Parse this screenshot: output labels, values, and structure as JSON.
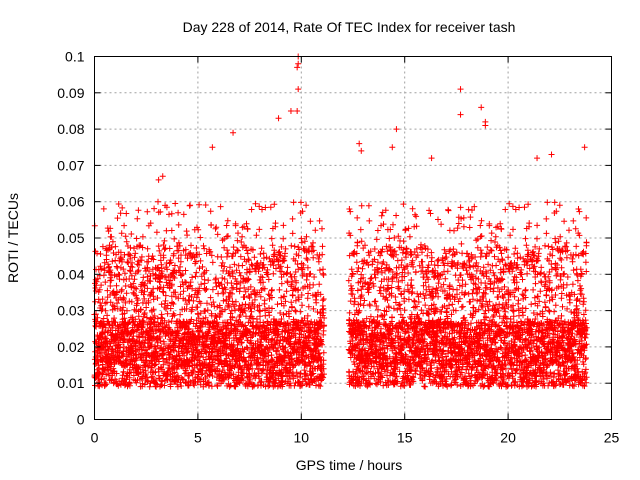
{
  "chart_data": {
    "type": "scatter",
    "title": "Day 228 of 2014, Rate Of TEC Index for receiver tash",
    "xlabel": "GPS time / hours",
    "ylabel": "ROTI / TECUs",
    "xlim": [
      0,
      25
    ],
    "ylim": [
      0,
      0.1
    ],
    "xticks": [
      0,
      5,
      10,
      15,
      20,
      25
    ],
    "xtick_labels": [
      "0",
      "5",
      "10",
      "15",
      "20",
      "25"
    ],
    "yticks": [
      0,
      0.01,
      0.02,
      0.03,
      0.04,
      0.05,
      0.06,
      0.07,
      0.08,
      0.09,
      0.1
    ],
    "ytick_labels": [
      "0",
      "0.01",
      "0.02",
      "0.03",
      "0.04",
      "0.05",
      "0.06",
      "0.07",
      "0.08",
      "0.09",
      "0.1"
    ],
    "grid": true,
    "marker": "+",
    "marker_color": "#ff0000",
    "series": [
      {
        "name": "ROTI",
        "data_segments": [
          {
            "x_start": 0.0,
            "x_end": 11.1
          },
          {
            "x_start": 12.3,
            "x_end": 23.8
          }
        ],
        "typical_range": [
          0.005,
          0.06
        ],
        "notable_points": [
          {
            "x": 9.85,
            "y": 0.1
          },
          {
            "x": 9.85,
            "y": 0.098
          },
          {
            "x": 9.8,
            "y": 0.097
          },
          {
            "x": 9.85,
            "y": 0.091
          },
          {
            "x": 9.5,
            "y": 0.085
          },
          {
            "x": 9.8,
            "y": 0.085
          },
          {
            "x": 8.9,
            "y": 0.083
          },
          {
            "x": 6.7,
            "y": 0.079
          },
          {
            "x": 5.7,
            "y": 0.075
          },
          {
            "x": 3.1,
            "y": 0.066
          },
          {
            "x": 3.3,
            "y": 0.067
          },
          {
            "x": 14.6,
            "y": 0.08
          },
          {
            "x": 14.4,
            "y": 0.075
          },
          {
            "x": 17.7,
            "y": 0.091
          },
          {
            "x": 17.7,
            "y": 0.084
          },
          {
            "x": 18.7,
            "y": 0.086
          },
          {
            "x": 18.9,
            "y": 0.081
          },
          {
            "x": 18.9,
            "y": 0.082
          },
          {
            "x": 23.7,
            "y": 0.075
          },
          {
            "x": 12.8,
            "y": 0.076
          },
          {
            "x": 12.9,
            "y": 0.074
          },
          {
            "x": 16.3,
            "y": 0.072
          },
          {
            "x": 22.1,
            "y": 0.073
          },
          {
            "x": 21.4,
            "y": 0.072
          }
        ]
      }
    ]
  }
}
